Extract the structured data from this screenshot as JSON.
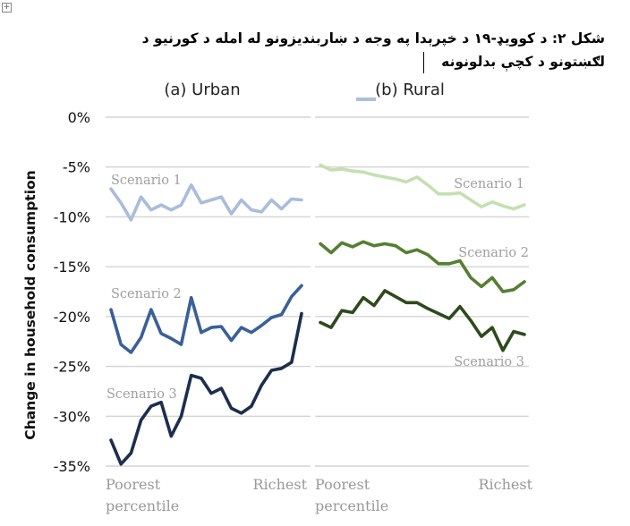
{
  "title": {
    "line1": "شکل ۲: د کوویډ-۱۹ د خپرېدا په وجه د ښاربندیزونو له امله د کورنیو د",
    "line2": "لګښتونو د کچې بدلونونه"
  },
  "colors": {
    "urban_s1": "#a9bcdc",
    "urban_s2": "#3a5f99",
    "urban_s3": "#1d2e4e",
    "rural_s1": "#c4e0b0",
    "rural_s2": "#557f33",
    "rural_s3": "#2e4a1c",
    "grid": "#d4d4d4",
    "annotation": "#a0a0a0"
  },
  "chart_data": {
    "type": "line",
    "ylabel": "Change in household consumption",
    "ylim": [
      -35,
      0
    ],
    "yticks": [
      {
        "value": 0,
        "label": "0%"
      },
      {
        "value": -5,
        "label": "-5%"
      },
      {
        "value": -10,
        "label": "-10%"
      },
      {
        "value": -15,
        "label": "-15%"
      },
      {
        "value": -20,
        "label": "-20%"
      },
      {
        "value": -25,
        "label": "-25%"
      },
      {
        "value": -30,
        "label": "-30%"
      },
      {
        "value": -35,
        "label": "-35%"
      }
    ],
    "grid": true,
    "panels": [
      {
        "id": "urban",
        "title": "(a) Urban",
        "x_start_label": [
          "Poorest",
          "percentile"
        ],
        "x_end_label": "Richest",
        "series": [
          {
            "name": "Scenario 1",
            "color": "#a9bcdc",
            "values": [
              -7.2,
              -8.6,
              -10.3,
              -8.0,
              -9.3,
              -8.8,
              -9.3,
              -8.8,
              -6.8,
              -8.6,
              -8.3,
              -8.0,
              -9.7,
              -8.3,
              -9.3,
              -9.5,
              -8.3,
              -9.2,
              -8.2,
              -8.3
            ]
          },
          {
            "name": "Scenario 2",
            "color": "#3a5f99",
            "values": [
              -19.3,
              -22.8,
              -23.6,
              -22.1,
              -19.3,
              -21.7,
              -22.2,
              -22.8,
              -18.1,
              -21.6,
              -21.1,
              -21.0,
              -22.4,
              -21.1,
              -21.6,
              -20.9,
              -20.1,
              -19.8,
              -18.0,
              -16.9
            ]
          },
          {
            "name": "Scenario 3",
            "color": "#1d2e4e",
            "values": [
              -32.4,
              -34.8,
              -33.7,
              -30.4,
              -29.0,
              -28.6,
              -32.0,
              -30.0,
              -25.9,
              -26.2,
              -27.7,
              -27.2,
              -29.2,
              -29.7,
              -29.0,
              -26.9,
              -25.4,
              -25.2,
              -24.6,
              -19.7
            ]
          }
        ]
      },
      {
        "id": "rural",
        "title": "(b) Rural",
        "x_start_label": [
          "Poorest",
          "percentile"
        ],
        "x_end_label": "Richest",
        "series": [
          {
            "name": "Scenario 1",
            "color": "#c4e0b0",
            "values": [
              -4.8,
              -5.3,
              -5.2,
              -5.4,
              -5.5,
              -5.8,
              -6.0,
              -6.2,
              -6.5,
              -6.0,
              -6.8,
              -7.7,
              -7.7,
              -7.6,
              -8.3,
              -9.0,
              -8.5,
              -8.9,
              -9.2,
              -8.8
            ]
          },
          {
            "name": "Scenario 2",
            "color": "#557f33",
            "values": [
              -12.7,
              -13.6,
              -12.6,
              -13.0,
              -12.5,
              -12.9,
              -12.7,
              -12.9,
              -13.6,
              -13.3,
              -13.8,
              -14.7,
              -14.7,
              -14.4,
              -16.1,
              -17.0,
              -16.1,
              -17.5,
              -17.3,
              -16.5
            ]
          },
          {
            "name": "Scenario 3",
            "color": "#2e4a1c",
            "values": [
              -20.6,
              -21.1,
              -19.4,
              -19.6,
              -18.1,
              -18.9,
              -17.4,
              -18.0,
              -18.6,
              -18.6,
              -19.2,
              -19.7,
              -20.2,
              -19.0,
              -20.4,
              -22.0,
              -21.1,
              -23.4,
              -21.5,
              -21.8
            ]
          }
        ]
      }
    ]
  }
}
